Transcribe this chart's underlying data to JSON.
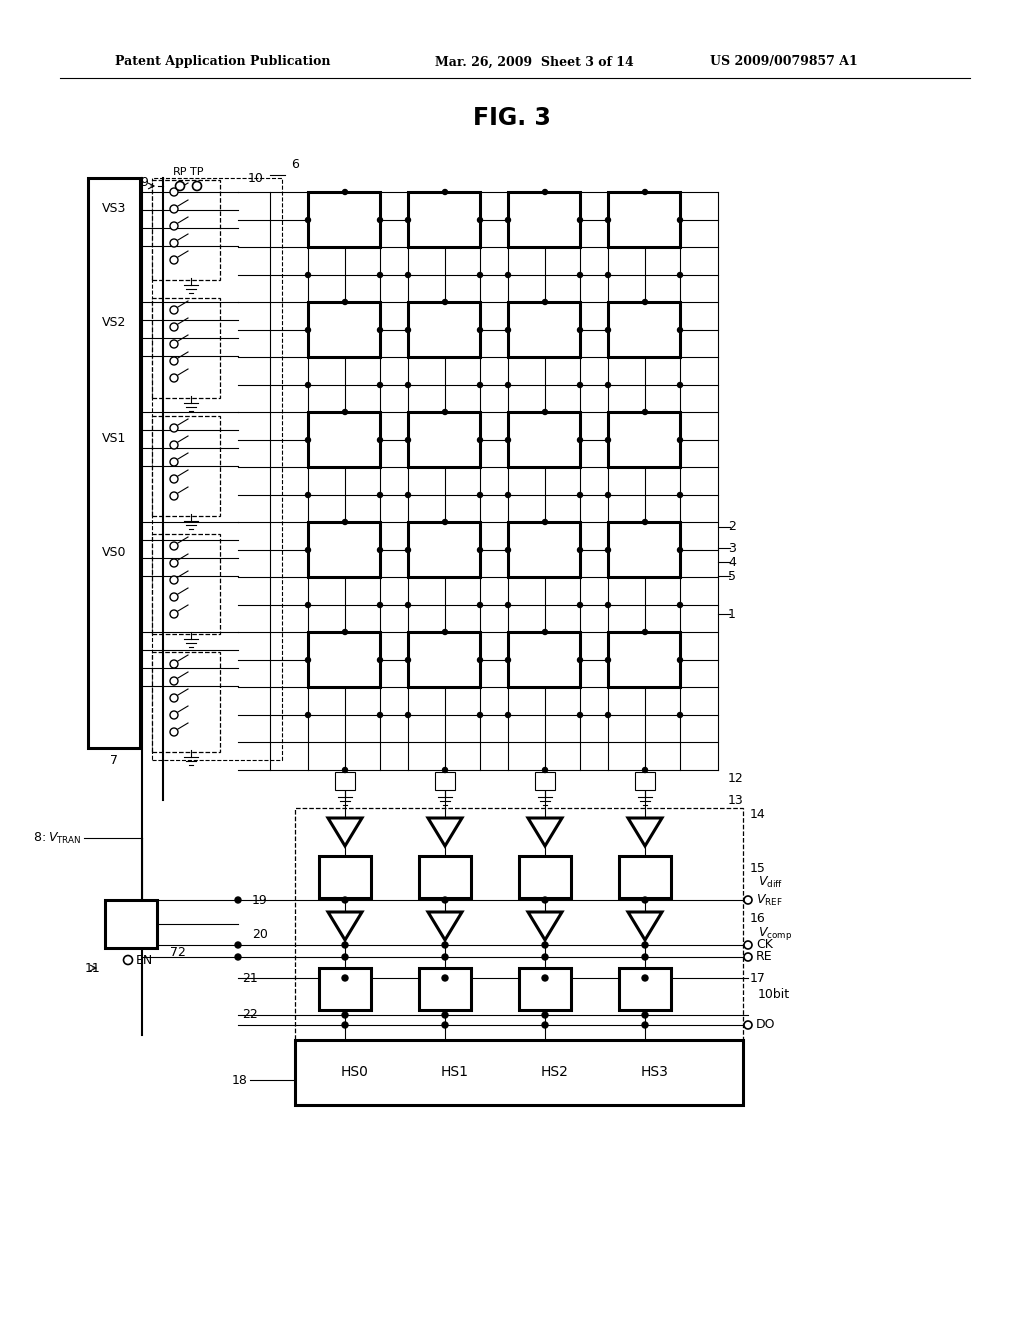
{
  "title": "FIG. 3",
  "header_left": "Patent Application Publication",
  "header_center": "Mar. 26, 2009  Sheet 3 of 14",
  "header_right": "US 2009/0079857 A1",
  "bg_color": "#ffffff",
  "fig_width": 10.24,
  "fig_height": 13.2
}
